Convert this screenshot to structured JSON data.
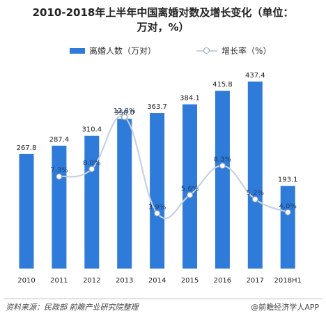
{
  "header": {
    "title_line1": "2010-2018年上半年中国离婚对数及增长变化（单位：",
    "title_line2": "万对，%）"
  },
  "footer": {
    "source": "资料来源：民政部 前瞻产业研究院整理",
    "brand": "@前瞻经济学人APP"
  },
  "chart_data": {
    "type": "bar",
    "title": "2010-2018年上半年中国离婚对数及增长变化（单位：万对，%）",
    "categories": [
      "2010",
      "2011",
      "2012",
      "2013",
      "2014",
      "2015",
      "2016",
      "2017",
      "2018H1"
    ],
    "series": [
      {
        "name": "离婚人数（万对）",
        "type": "bar",
        "values": [
          267.8,
          287.4,
          310.4,
          350.0,
          363.7,
          384.1,
          415.8,
          437.4,
          193.1
        ],
        "labels": [
          "267.8",
          "287.4",
          "310.4",
          "350.0",
          "363.7",
          "384.1",
          "415.8",
          "437.4",
          "193.1"
        ],
        "color": "#2e7bd9"
      },
      {
        "name": "增长率（%）",
        "type": "line",
        "values": [
          null,
          7.3,
          8.0,
          12.8,
          3.9,
          5.6,
          8.3,
          5.2,
          4.0
        ],
        "labels": [
          "",
          "7.3%",
          "8.0%",
          "12.8%",
          "3.9%",
          "5.6%",
          "8.3%",
          "5.2%",
          "4.0%"
        ],
        "color": "#c6d1e2"
      }
    ],
    "legend_position": "top-center",
    "grid": false
  }
}
